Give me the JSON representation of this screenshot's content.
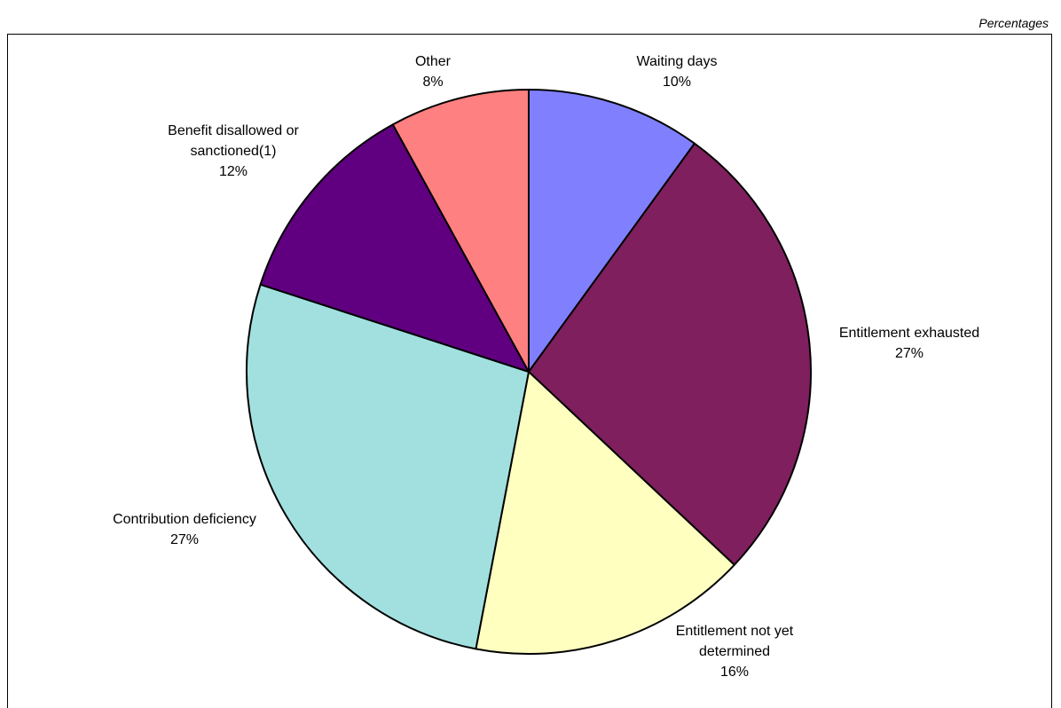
{
  "units_label": "Percentages",
  "chart_data": {
    "type": "pie",
    "start_angle_deg": 0,
    "direction": "clockwise",
    "slices": [
      {
        "label_lines": [
          "Waiting days"
        ],
        "value": 10,
        "value_label": "10%",
        "color": "#8080FF"
      },
      {
        "label_lines": [
          "Entitlement exhausted"
        ],
        "value": 27,
        "value_label": "27%",
        "color": "#7F1F5E"
      },
      {
        "label_lines": [
          "Entitlement not yet",
          "determined"
        ],
        "value": 16,
        "value_label": "16%",
        "color": "#FFFFC0"
      },
      {
        "label_lines": [
          "Contribution deficiency"
        ],
        "value": 27,
        "value_label": "27%",
        "color": "#A2E0E0"
      },
      {
        "label_lines": [
          "Benefit disallowed or",
          "sanctioned(1)"
        ],
        "value": 12,
        "value_label": "12%",
        "color": "#600080"
      },
      {
        "label_lines": [
          "Other"
        ],
        "value": 8,
        "value_label": "8%",
        "color": "#FF8080"
      }
    ]
  }
}
